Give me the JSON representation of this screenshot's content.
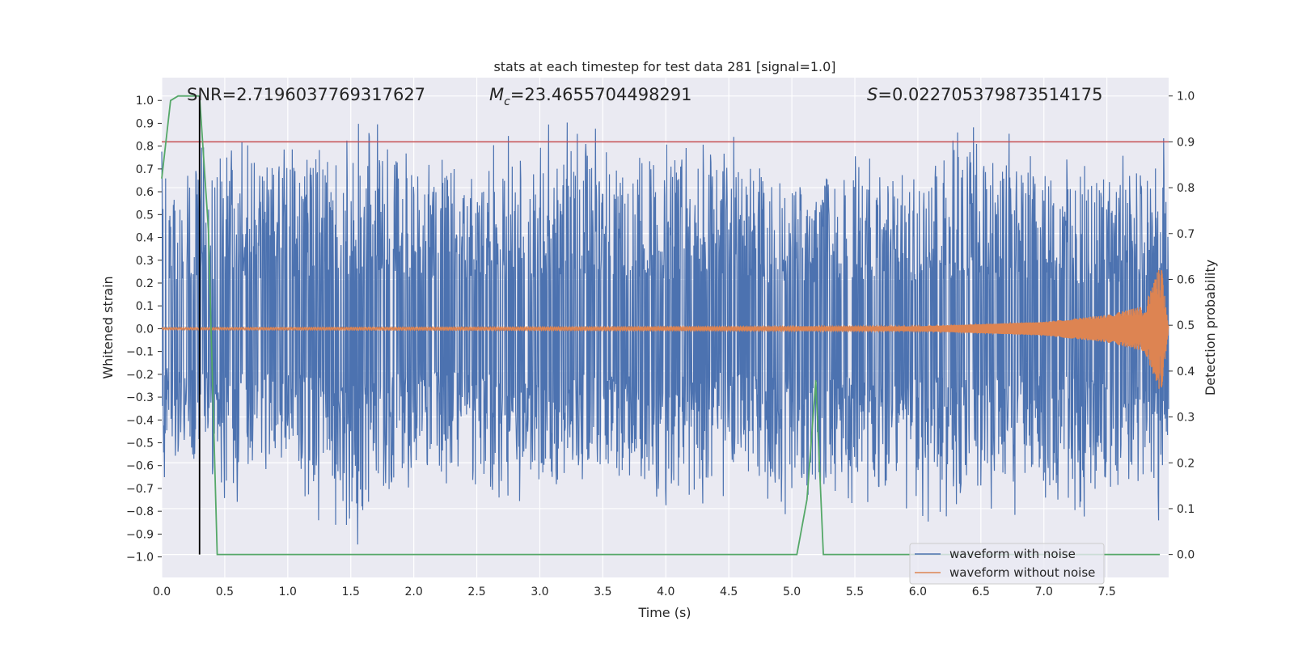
{
  "chart_data": {
    "type": "line",
    "title": "stats at each timestep for test data 281 [signal=1.0]",
    "xlabel": "Time (s)",
    "ylabel_left": "Whitened strain",
    "ylabel_right": "Detection probability",
    "xlim": [
      0.0,
      7.99
    ],
    "ylim_left": [
      -1.09,
      1.1
    ],
    "ylim_right": [
      -0.05,
      1.04
    ],
    "x_ticks": [
      "0.0",
      "0.5",
      "1.0",
      "1.5",
      "2.0",
      "2.5",
      "3.0",
      "3.5",
      "4.0",
      "4.5",
      "5.0",
      "5.5",
      "6.0",
      "6.5",
      "7.0",
      "7.5"
    ],
    "y_ticks_left": [
      "1.0",
      "0.9",
      "0.8",
      "0.7",
      "0.6",
      "0.5",
      "0.4",
      "0.3",
      "0.2",
      "0.1",
      "0.0",
      "−0.1",
      "−0.2",
      "−0.3",
      "−0.4",
      "−0.5",
      "−0.6",
      "−0.7",
      "−0.8",
      "−0.9",
      "−1.0"
    ],
    "y_ticks_right": [
      "1.0",
      "0.9",
      "0.8",
      "0.7",
      "0.6",
      "0.5",
      "0.4",
      "0.3",
      "0.2",
      "0.1",
      "0.0"
    ],
    "annotations": {
      "snr": "SNR=2.7196037769317627",
      "mc_symbol": "M",
      "mc_sub": "c",
      "mc_value": "=23.4655704498291",
      "s_symbol": "S",
      "s_value": "=0.022705379873514175"
    },
    "legend": {
      "position": "lower-right",
      "entries": [
        "waveform with noise",
        "waveform without noise"
      ]
    },
    "threshold_probability": 0.9,
    "event_time": 0.3,
    "noise_envelope": {
      "x": [
        0.0,
        0.5,
        1.0,
        1.5,
        2.0,
        2.5,
        3.0,
        3.5,
        4.0,
        4.5,
        5.0,
        5.5,
        6.0,
        6.5,
        7.0,
        7.5,
        7.99
      ],
      "max": [
        0.78,
        0.89,
        0.86,
        0.9,
        0.91,
        0.8,
        0.91,
        0.97,
        0.87,
        0.86,
        0.77,
        0.78,
        0.84,
        0.92,
        0.82,
        0.76,
        0.85
      ],
      "min": [
        -0.66,
        -0.8,
        -0.7,
        -1.0,
        -0.73,
        -0.77,
        -0.84,
        -0.7,
        -0.85,
        -0.75,
        -0.84,
        -0.84,
        -0.86,
        -0.82,
        -0.82,
        -0.84,
        -0.85
      ]
    },
    "clean_waveform_amplitude": {
      "x": [
        0.0,
        6.0,
        7.0,
        7.5,
        7.8,
        7.93,
        7.99
      ],
      "amp": [
        0.005,
        0.01,
        0.03,
        0.06,
        0.1,
        0.29,
        0.0
      ]
    },
    "series": [
      {
        "name": "waveform with noise",
        "color": "#4c72b0",
        "axis": "left"
      },
      {
        "name": "waveform without noise",
        "color": "#dd8452",
        "axis": "left"
      },
      {
        "name": "detection probability",
        "color": "#55a868",
        "axis": "right",
        "x": [
          0.0,
          0.07,
          0.13,
          0.2,
          0.3,
          0.37,
          0.44,
          5.04,
          5.12,
          5.19,
          5.25,
          5.32,
          7.92
        ],
        "y": [
          0.82,
          0.99,
          1.0,
          1.0,
          1.0,
          0.71,
          0.0,
          0.0,
          0.12,
          0.38,
          0.0,
          0.0,
          0.0
        ]
      },
      {
        "name": "threshold",
        "color": "#c44e52",
        "axis": "right"
      },
      {
        "name": "event marker",
        "color": "#000000",
        "axis": "left"
      }
    ],
    "colors": {
      "axes_background": "#eaeaf2",
      "grid": "#ffffff",
      "noise": "#4c72b0",
      "clean": "#dd8452",
      "probability": "#55a868",
      "threshold": "#c44e52",
      "marker": "#000000"
    }
  }
}
